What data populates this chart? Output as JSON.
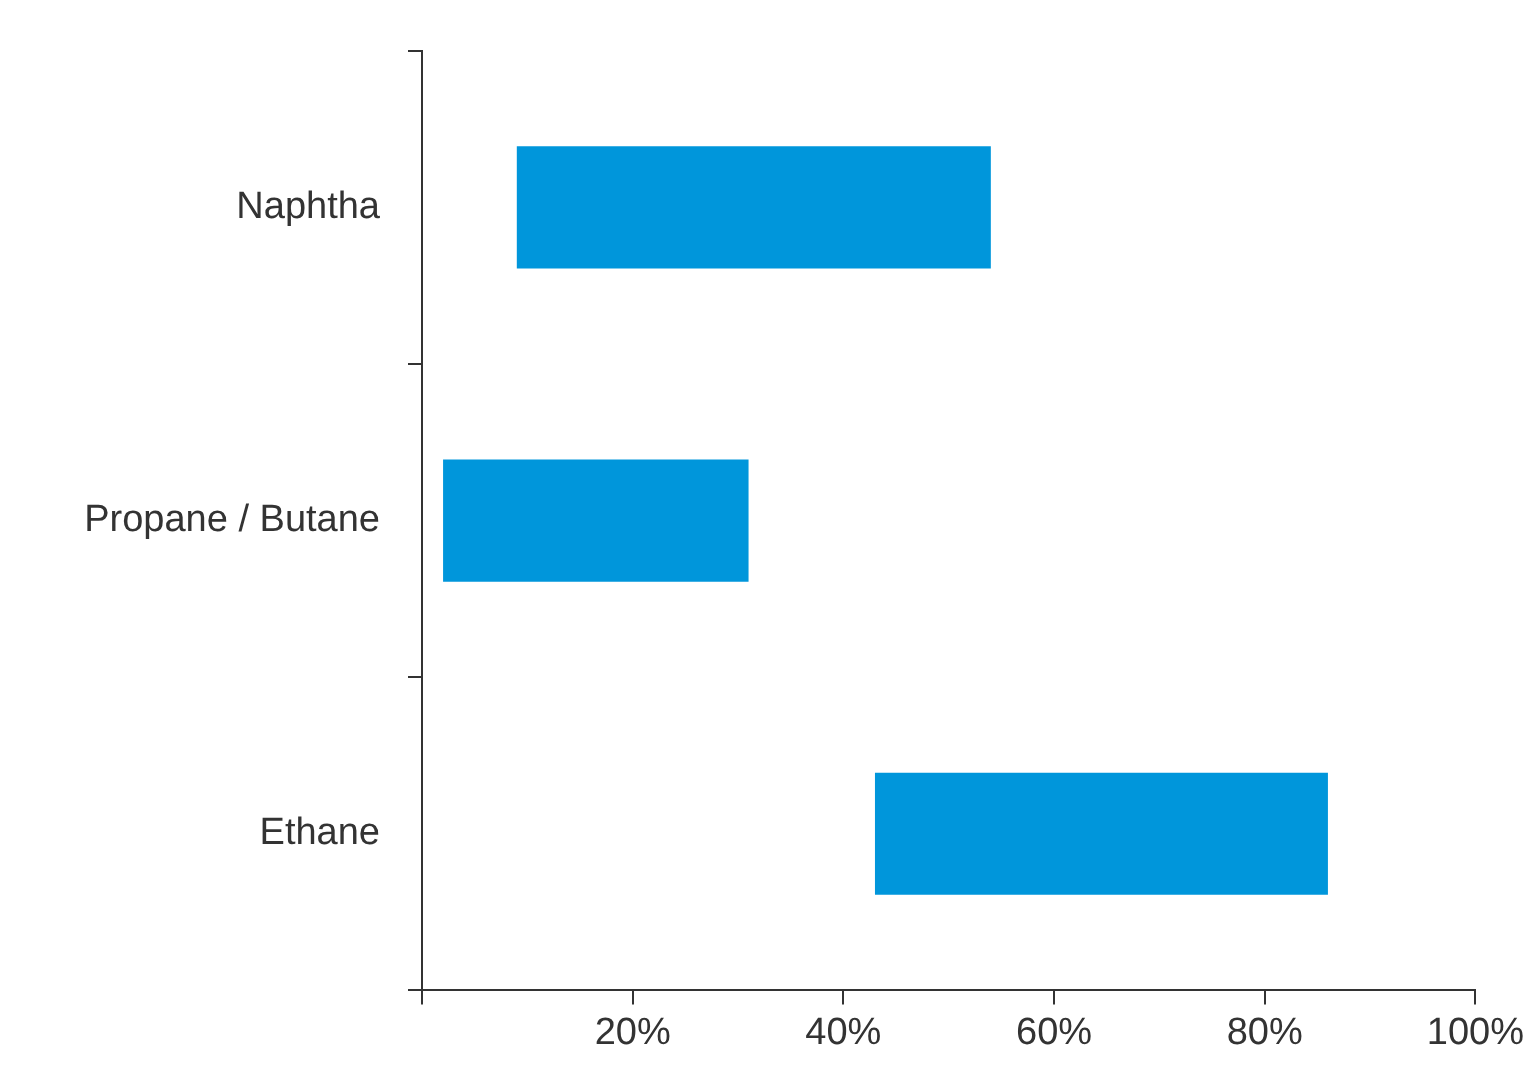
{
  "chart_data": {
    "type": "bar",
    "orientation": "horizontal",
    "categories": [
      "Naphtha",
      "Propane / Butane",
      "Ethane"
    ],
    "base": [
      9,
      2,
      43
    ],
    "values": [
      45,
      29,
      43
    ],
    "color": "#0096db",
    "xlim": [
      0,
      100
    ],
    "xticks": [
      {
        "value": 0,
        "label": null
      },
      {
        "value": 20,
        "label": "20%"
      },
      {
        "value": 40,
        "label": "40%"
      },
      {
        "value": 60,
        "label": "60%"
      },
      {
        "value": 80,
        "label": "80%"
      },
      {
        "value": 100,
        "label": "100%"
      }
    ],
    "grid": false,
    "legend": false
  }
}
